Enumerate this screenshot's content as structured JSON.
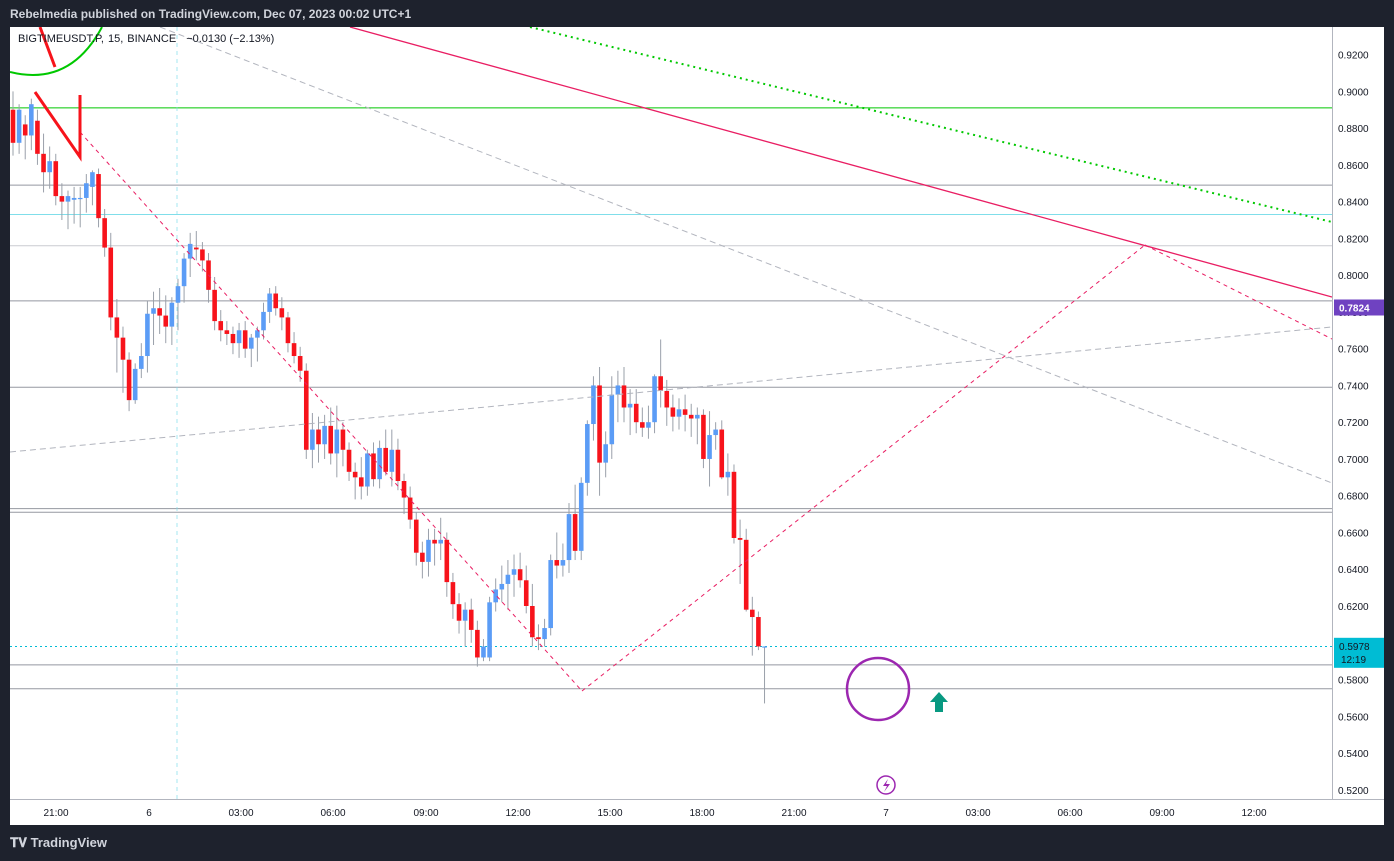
{
  "header": {
    "title": "Rebelmedia published on TradingView.com, Dec 07, 2023 00:02 UTC+1"
  },
  "legend": {
    "symbol": "BIGTIMEUSDT.P",
    "interval": "15",
    "exchange": "BINANCE",
    "change": "−0.0130 (−2.13%)"
  },
  "footer": {
    "brand": "TradingView"
  },
  "colors": {
    "up": "#5b9cf6",
    "down": "#f7131b",
    "trendline": "#e91e63",
    "green": "#00c800",
    "circle": "#9c27b0",
    "arrow": "#089981",
    "price_label": "#6f42c1",
    "last_label": "#00bcd4"
  },
  "chart_data": {
    "type": "candlestick",
    "ylim": [
      0.515,
      0.935
    ],
    "y_ticks": [
      "0.9200",
      "0.9000",
      "0.8800",
      "0.8600",
      "0.8400",
      "0.8200",
      "0.8000",
      "0.7800",
      "0.7600",
      "0.7400",
      "0.7200",
      "0.7000",
      "0.6800",
      "0.6600",
      "0.6400",
      "0.6200",
      "0.6000",
      "0.5800",
      "0.5600",
      "0.5400",
      "0.5200"
    ],
    "x_ticks": [
      "21:00",
      "6",
      "03:00",
      "06:00",
      "09:00",
      "12:00",
      "15:00",
      "18:00",
      "21:00",
      "7",
      "03:00",
      "06:00",
      "09:00",
      "12:00"
    ],
    "price_label": "0.7824",
    "last_price": "0.5978",
    "countdown": "12:19",
    "horizontal_levels": [
      0.891,
      0.849,
      0.833,
      0.816,
      0.786,
      0.739,
      0.673,
      0.671,
      0.598,
      0.588,
      0.575
    ],
    "candles": [
      [
        0.89,
        0.9,
        0.865,
        0.872
      ],
      [
        0.872,
        0.893,
        0.866,
        0.89
      ],
      [
        0.882,
        0.887,
        0.863,
        0.876
      ],
      [
        0.876,
        0.896,
        0.868,
        0.893
      ],
      [
        0.884,
        0.89,
        0.86,
        0.866
      ],
      [
        0.866,
        0.877,
        0.845,
        0.856
      ],
      [
        0.856,
        0.87,
        0.847,
        0.862
      ],
      [
        0.862,
        0.866,
        0.838,
        0.843
      ],
      [
        0.843,
        0.85,
        0.83,
        0.84
      ],
      [
        0.84,
        0.846,
        0.825,
        0.843
      ],
      [
        0.841,
        0.848,
        0.828,
        0.842
      ],
      [
        0.842,
        0.848,
        0.826,
        0.842
      ],
      [
        0.842,
        0.855,
        0.834,
        0.85
      ],
      [
        0.848,
        0.857,
        0.838,
        0.856
      ],
      [
        0.855,
        0.858,
        0.826,
        0.831
      ],
      [
        0.831,
        0.836,
        0.81,
        0.815
      ],
      [
        0.815,
        0.823,
        0.77,
        0.777
      ],
      [
        0.777,
        0.787,
        0.747,
        0.766
      ],
      [
        0.766,
        0.772,
        0.736,
        0.754
      ],
      [
        0.754,
        0.758,
        0.726,
        0.732
      ],
      [
        0.732,
        0.752,
        0.73,
        0.749
      ],
      [
        0.749,
        0.763,
        0.744,
        0.756
      ],
      [
        0.756,
        0.786,
        0.747,
        0.779
      ],
      [
        0.779,
        0.791,
        0.762,
        0.782
      ],
      [
        0.782,
        0.793,
        0.768,
        0.778
      ],
      [
        0.778,
        0.789,
        0.763,
        0.772
      ],
      [
        0.772,
        0.788,
        0.762,
        0.785
      ],
      [
        0.785,
        0.798,
        0.77,
        0.794
      ],
      [
        0.794,
        0.812,
        0.785,
        0.809
      ],
      [
        0.809,
        0.823,
        0.799,
        0.817
      ],
      [
        0.815,
        0.824,
        0.808,
        0.814
      ],
      [
        0.814,
        0.818,
        0.802,
        0.808
      ],
      [
        0.808,
        0.812,
        0.785,
        0.792
      ],
      [
        0.792,
        0.799,
        0.77,
        0.775
      ],
      [
        0.775,
        0.781,
        0.764,
        0.77
      ],
      [
        0.77,
        0.775,
        0.762,
        0.768
      ],
      [
        0.768,
        0.772,
        0.757,
        0.763
      ],
      [
        0.763,
        0.774,
        0.755,
        0.77
      ],
      [
        0.77,
        0.775,
        0.755,
        0.76
      ],
      [
        0.76,
        0.768,
        0.75,
        0.766
      ],
      [
        0.766,
        0.772,
        0.753,
        0.77
      ],
      [
        0.77,
        0.785,
        0.765,
        0.78
      ],
      [
        0.78,
        0.793,
        0.774,
        0.79
      ],
      [
        0.79,
        0.794,
        0.778,
        0.782
      ],
      [
        0.782,
        0.788,
        0.77,
        0.777
      ],
      [
        0.777,
        0.78,
        0.758,
        0.763
      ],
      [
        0.763,
        0.769,
        0.752,
        0.756
      ],
      [
        0.756,
        0.761,
        0.742,
        0.748
      ],
      [
        0.748,
        0.752,
        0.7,
        0.705
      ],
      [
        0.705,
        0.725,
        0.695,
        0.716
      ],
      [
        0.716,
        0.723,
        0.698,
        0.708
      ],
      [
        0.708,
        0.724,
        0.7,
        0.718
      ],
      [
        0.718,
        0.728,
        0.697,
        0.703
      ],
      [
        0.703,
        0.729,
        0.69,
        0.716
      ],
      [
        0.716,
        0.72,
        0.696,
        0.705
      ],
      [
        0.705,
        0.709,
        0.688,
        0.693
      ],
      [
        0.693,
        0.698,
        0.678,
        0.69
      ],
      [
        0.69,
        0.701,
        0.678,
        0.685
      ],
      [
        0.685,
        0.705,
        0.68,
        0.703
      ],
      [
        0.703,
        0.709,
        0.685,
        0.689
      ],
      [
        0.689,
        0.71,
        0.684,
        0.706
      ],
      [
        0.706,
        0.716,
        0.691,
        0.693
      ],
      [
        0.693,
        0.716,
        0.685,
        0.705
      ],
      [
        0.705,
        0.711,
        0.683,
        0.688
      ],
      [
        0.688,
        0.692,
        0.67,
        0.679
      ],
      [
        0.679,
        0.685,
        0.662,
        0.667
      ],
      [
        0.667,
        0.671,
        0.642,
        0.649
      ],
      [
        0.649,
        0.655,
        0.635,
        0.644
      ],
      [
        0.644,
        0.662,
        0.636,
        0.656
      ],
      [
        0.656,
        0.662,
        0.642,
        0.654
      ],
      [
        0.654,
        0.668,
        0.645,
        0.656
      ],
      [
        0.656,
        0.66,
        0.625,
        0.633
      ],
      [
        0.633,
        0.638,
        0.613,
        0.621
      ],
      [
        0.621,
        0.627,
        0.605,
        0.612
      ],
      [
        0.612,
        0.622,
        0.598,
        0.618
      ],
      [
        0.618,
        0.624,
        0.6,
        0.607
      ],
      [
        0.607,
        0.612,
        0.587,
        0.592
      ],
      [
        0.592,
        0.602,
        0.59,
        0.598
      ],
      [
        0.592,
        0.625,
        0.59,
        0.622
      ],
      [
        0.622,
        0.635,
        0.617,
        0.629
      ],
      [
        0.629,
        0.642,
        0.622,
        0.632
      ],
      [
        0.632,
        0.645,
        0.618,
        0.637
      ],
      [
        0.637,
        0.648,
        0.625,
        0.64
      ],
      [
        0.64,
        0.649,
        0.63,
        0.634
      ],
      [
        0.634,
        0.642,
        0.616,
        0.62
      ],
      [
        0.62,
        0.632,
        0.598,
        0.603
      ],
      [
        0.603,
        0.61,
        0.596,
        0.602
      ],
      [
        0.602,
        0.613,
        0.598,
        0.608
      ],
      [
        0.608,
        0.648,
        0.604,
        0.645
      ],
      [
        0.645,
        0.66,
        0.635,
        0.642
      ],
      [
        0.642,
        0.654,
        0.636,
        0.645
      ],
      [
        0.645,
        0.676,
        0.638,
        0.67
      ],
      [
        0.67,
        0.686,
        0.645,
        0.65
      ],
      [
        0.65,
        0.69,
        0.645,
        0.687
      ],
      [
        0.687,
        0.721,
        0.68,
        0.719
      ],
      [
        0.719,
        0.745,
        0.71,
        0.74
      ],
      [
        0.74,
        0.75,
        0.68,
        0.698
      ],
      [
        0.698,
        0.715,
        0.69,
        0.708
      ],
      [
        0.708,
        0.745,
        0.7,
        0.735
      ],
      [
        0.735,
        0.748,
        0.72,
        0.74
      ],
      [
        0.74,
        0.75,
        0.72,
        0.728
      ],
      [
        0.728,
        0.738,
        0.713,
        0.73
      ],
      [
        0.73,
        0.738,
        0.714,
        0.72
      ],
      [
        0.72,
        0.728,
        0.712,
        0.717
      ],
      [
        0.717,
        0.729,
        0.711,
        0.72
      ],
      [
        0.72,
        0.746,
        0.714,
        0.745
      ],
      [
        0.745,
        0.765,
        0.728,
        0.737
      ],
      [
        0.737,
        0.743,
        0.718,
        0.728
      ],
      [
        0.728,
        0.735,
        0.715,
        0.723
      ],
      [
        0.723,
        0.733,
        0.716,
        0.727
      ],
      [
        0.727,
        0.735,
        0.715,
        0.724
      ],
      [
        0.724,
        0.73,
        0.712,
        0.722
      ],
      [
        0.722,
        0.728,
        0.708,
        0.724
      ],
      [
        0.724,
        0.727,
        0.695,
        0.7
      ],
      [
        0.7,
        0.726,
        0.685,
        0.713
      ],
      [
        0.713,
        0.72,
        0.705,
        0.716
      ],
      [
        0.716,
        0.721,
        0.689,
        0.69
      ],
      [
        0.69,
        0.703,
        0.68,
        0.693
      ],
      [
        0.693,
        0.697,
        0.654,
        0.657
      ],
      [
        0.657,
        0.667,
        0.632,
        0.656
      ],
      [
        0.656,
        0.662,
        0.617,
        0.618
      ],
      [
        0.618,
        0.625,
        0.593,
        0.614
      ],
      [
        0.614,
        0.617,
        0.596,
        0.598
      ],
      [
        0.598,
        0.598,
        0.567,
        0.598
      ]
    ]
  }
}
